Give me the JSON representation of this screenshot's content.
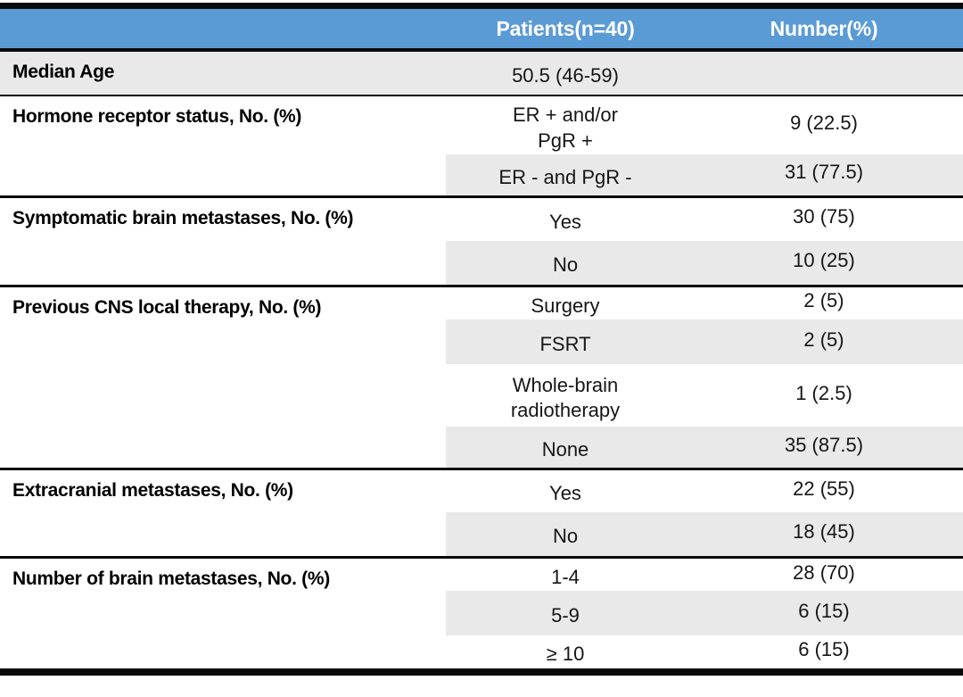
{
  "table": {
    "header": {
      "label_col": "",
      "patients_col": "Patients(n=40)",
      "number_col": "Number(%)"
    },
    "colors": {
      "header_bg": "#5B9BD5",
      "header_text": "#FFFFFF",
      "shaded_row_bg": "#E9E9E9",
      "border": "#0A0A0A"
    },
    "sections": [
      {
        "label": "Median Age",
        "rows": [
          {
            "category": "50.5 (46-59)",
            "value": "",
            "shaded": true
          }
        ]
      },
      {
        "label": "Hormone receptor status, No. (%)",
        "rows": [
          {
            "category": "ER + and/or\nPgR +",
            "value": "9 (22.5)",
            "shaded": false
          },
          {
            "category": "ER - and PgR -",
            "value": "31 (77.5)",
            "shaded": true
          }
        ]
      },
      {
        "label": "Symptomatic brain metastases, No. (%)",
        "rows": [
          {
            "category": "Yes",
            "value": "30 (75)",
            "shaded": false
          },
          {
            "category": "No",
            "value": "10 (25)",
            "shaded": true
          }
        ]
      },
      {
        "label": "Previous CNS local therapy, No. (%)",
        "rows": [
          {
            "category": "Surgery",
            "value": "2 (5)",
            "shaded": false
          },
          {
            "category": "FSRT",
            "value": "2 (5)",
            "shaded": true
          },
          {
            "category": "Whole-brain\nradiotherapy",
            "value": "1 (2.5)",
            "shaded": false
          },
          {
            "category": "None",
            "value": "35 (87.5)",
            "shaded": true
          }
        ]
      },
      {
        "label": "Extracranial metastases, No. (%)",
        "rows": [
          {
            "category": "Yes",
            "value": "22 (55)",
            "shaded": false
          },
          {
            "category": "No",
            "value": "18 (45)",
            "shaded": true
          }
        ]
      },
      {
        "label": "Number of brain metastases, No. (%)",
        "rows": [
          {
            "category": "1-4",
            "value": "28 (70)",
            "shaded": false
          },
          {
            "category": "5-9",
            "value": "6 (15)",
            "shaded": true
          },
          {
            "category": "≥ 10",
            "value": "6 (15)",
            "shaded": false
          }
        ]
      }
    ]
  }
}
